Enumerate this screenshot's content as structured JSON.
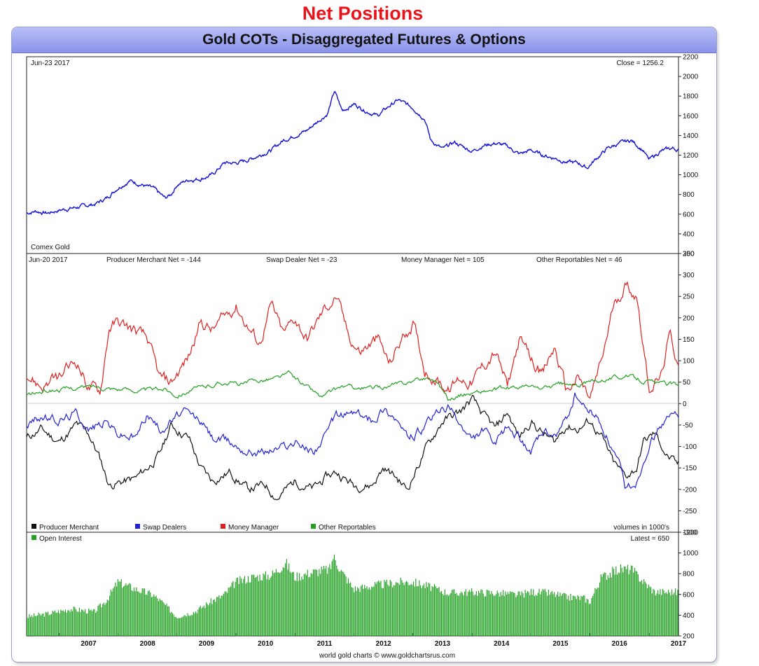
{
  "heading": "Net Positions",
  "title": "Gold COTs - Disaggregated Futures & Options",
  "footer": "world gold charts © www.goldchartsrus.com",
  "colors": {
    "gold_price": "#1010d8",
    "producer_merchant": "#111111",
    "swap_dealers": "#2222d6",
    "money_manager": "#e02020",
    "other_reportables": "#22a022",
    "open_interest": "#22a022",
    "title_bar": "#8b93ea"
  },
  "chart_data": [
    {
      "type": "line",
      "panel": "price",
      "date_label": "Jun-23 2017",
      "close_label": "Close = 1256.2",
      "instrument_label": "Comex Gold",
      "ylim": [
        200,
        2200
      ],
      "yticks": [
        200,
        400,
        600,
        800,
        1000,
        1200,
        1400,
        1600,
        1800,
        2000,
        2200
      ],
      "xlim": [
        2006.45,
        2017.5
      ],
      "series": [
        {
          "x": [
            2006.45,
            2006.6,
            2006.8,
            2007.0,
            2007.2,
            2007.4,
            2007.6,
            2007.8,
            2008.0,
            2008.2,
            2008.4,
            2008.6,
            2008.8,
            2008.9,
            2009.0,
            2009.2,
            2009.4,
            2009.6,
            2009.8,
            2010.0,
            2010.2,
            2010.4,
            2010.6,
            2010.8,
            2011.0,
            2011.2,
            2011.4,
            2011.55,
            2011.67,
            2011.8,
            2012.0,
            2012.2,
            2012.4,
            2012.6,
            2012.75,
            2013.0,
            2013.2,
            2013.3,
            2013.5,
            2013.7,
            2014.0,
            2014.2,
            2014.4,
            2014.6,
            2014.8,
            2015.0,
            2015.2,
            2015.4,
            2015.6,
            2015.8,
            2015.95,
            2016.1,
            2016.3,
            2016.5,
            2016.7,
            2016.9,
            2017.0,
            2017.2,
            2017.4,
            2017.47
          ],
          "y": [
            610,
            630,
            610,
            640,
            660,
            680,
            700,
            760,
            870,
            940,
            900,
            860,
            760,
            800,
            900,
            950,
            960,
            1000,
            1120,
            1120,
            1150,
            1200,
            1250,
            1350,
            1400,
            1450,
            1550,
            1620,
            1850,
            1650,
            1720,
            1650,
            1600,
            1700,
            1760,
            1680,
            1570,
            1350,
            1260,
            1330,
            1240,
            1300,
            1320,
            1290,
            1210,
            1250,
            1200,
            1170,
            1130,
            1120,
            1070,
            1160,
            1270,
            1320,
            1350,
            1250,
            1150,
            1240,
            1270,
            1256
          ]
        }
      ]
    },
    {
      "type": "line",
      "panel": "net_positions",
      "date_label": "Jun-20 2017",
      "ylim": [
        -300,
        350
      ],
      "yticks": [
        -300,
        -250,
        -200,
        -150,
        -100,
        -50,
        0,
        50,
        100,
        150,
        200,
        250,
        300,
        350
      ],
      "xlim": [
        2006.45,
        2017.5
      ],
      "legend": [
        "Producer Merchant",
        "Swap Dealers",
        "Money Manager",
        "Other Reportables"
      ],
      "volume_note": "volumes in 1000's",
      "series": [
        {
          "name": "Producer Merchant",
          "label": "Producer Merchant Net = -144",
          "x": [
            2006.45,
            2006.7,
            2007.0,
            2007.3,
            2007.5,
            2007.7,
            2007.85,
            2008.0,
            2008.3,
            2008.5,
            2008.7,
            2008.9,
            2009.2,
            2009.4,
            2009.6,
            2009.9,
            2010.2,
            2010.5,
            2010.7,
            2011.0,
            2011.3,
            2011.55,
            2011.7,
            2012.0,
            2012.3,
            2012.5,
            2012.7,
            2012.9,
            2013.2,
            2013.5,
            2013.8,
            2014.0,
            2014.2,
            2014.4,
            2014.6,
            2014.8,
            2015.0,
            2015.2,
            2015.4,
            2015.6,
            2015.8,
            2016.0,
            2016.2,
            2016.4,
            2016.6,
            2016.8,
            2016.9,
            2017.1,
            2017.3,
            2017.47
          ],
          "y": [
            -80,
            -60,
            -90,
            -50,
            -70,
            -130,
            -190,
            -185,
            -175,
            -150,
            -120,
            -50,
            -80,
            -150,
            -180,
            -160,
            -200,
            -190,
            -220,
            -180,
            -200,
            -170,
            -160,
            -190,
            -190,
            -150,
            -170,
            -200,
            -110,
            -40,
            -20,
            10,
            -30,
            -60,
            -20,
            -80,
            -40,
            -70,
            -90,
            -50,
            -60,
            -40,
            -80,
            -140,
            -170,
            -150,
            -90,
            -70,
            -120,
            -144
          ]
        },
        {
          "name": "Swap Dealers",
          "label": "Swap Dealer Net = -23",
          "x": [
            2006.45,
            2006.7,
            2007.0,
            2007.3,
            2007.5,
            2007.8,
            2008.0,
            2008.3,
            2008.5,
            2008.7,
            2008.9,
            2009.1,
            2009.4,
            2009.6,
            2009.9,
            2010.2,
            2010.5,
            2010.8,
            2011.0,
            2011.3,
            2011.5,
            2011.7,
            2012.0,
            2012.3,
            2012.5,
            2012.7,
            2012.9,
            2013.2,
            2013.4,
            2013.6,
            2013.8,
            2014.0,
            2014.2,
            2014.4,
            2014.6,
            2014.8,
            2015.0,
            2015.2,
            2015.4,
            2015.6,
            2015.75,
            2015.9,
            2016.1,
            2016.3,
            2016.5,
            2016.6,
            2016.8,
            2017.0,
            2017.2,
            2017.47
          ],
          "y": [
            -50,
            -30,
            -40,
            -20,
            -60,
            -40,
            -70,
            -80,
            -20,
            -60,
            -40,
            -20,
            -40,
            -80,
            -90,
            -110,
            -110,
            -100,
            -90,
            -110,
            -80,
            -30,
            -20,
            -40,
            -10,
            -30,
            -80,
            -60,
            -20,
            -10,
            -50,
            -90,
            -60,
            -100,
            -50,
            -80,
            -110,
            -70,
            -80,
            -40,
            20,
            -10,
            -30,
            -80,
            -150,
            -200,
            -180,
            -90,
            -50,
            -23
          ]
        },
        {
          "name": "Money Manager",
          "label": "Money Manager Net = 105",
          "x": [
            2006.45,
            2006.7,
            2007.0,
            2007.3,
            2007.5,
            2007.7,
            2007.85,
            2008.0,
            2008.3,
            2008.5,
            2008.7,
            2008.9,
            2009.2,
            2009.4,
            2009.6,
            2009.8,
            2010.0,
            2010.2,
            2010.4,
            2010.6,
            2010.8,
            2011.0,
            2011.2,
            2011.5,
            2011.7,
            2011.9,
            2012.1,
            2012.4,
            2012.6,
            2012.8,
            2013.0,
            2013.2,
            2013.4,
            2013.6,
            2013.8,
            2014.0,
            2014.2,
            2014.4,
            2014.6,
            2014.8,
            2015.0,
            2015.2,
            2015.4,
            2015.6,
            2015.8,
            2016.0,
            2016.2,
            2016.4,
            2016.6,
            2016.8,
            2017.0,
            2017.2,
            2017.35,
            2017.47
          ],
          "y": [
            70,
            40,
            60,
            100,
            40,
            30,
            180,
            190,
            170,
            150,
            60,
            50,
            110,
            190,
            170,
            200,
            230,
            180,
            140,
            230,
            160,
            200,
            150,
            220,
            250,
            160,
            120,
            150,
            90,
            150,
            190,
            80,
            60,
            30,
            60,
            50,
            90,
            120,
            40,
            150,
            100,
            70,
            130,
            30,
            60,
            10,
            100,
            230,
            280,
            250,
            40,
            60,
            160,
            105
          ]
        },
        {
          "name": "Other Reportables",
          "label": "Other Reportables Net = 46",
          "x": [
            2006.45,
            2006.8,
            2007.2,
            2007.6,
            2008.0,
            2008.4,
            2008.8,
            2009.0,
            2009.2,
            2009.5,
            2009.8,
            2010.1,
            2010.4,
            2010.7,
            2010.9,
            2011.2,
            2011.45,
            2011.8,
            2012.2,
            2012.6,
            2012.9,
            2013.2,
            2013.4,
            2013.6,
            2013.8,
            2014.0,
            2014.3,
            2014.6,
            2014.9,
            2015.2,
            2015.5,
            2015.8,
            2016.0,
            2016.3,
            2016.6,
            2016.9,
            2017.2,
            2017.47
          ],
          "y": [
            20,
            30,
            35,
            40,
            35,
            30,
            35,
            20,
            30,
            40,
            50,
            45,
            55,
            60,
            70,
            40,
            15,
            40,
            35,
            40,
            50,
            60,
            55,
            10,
            20,
            25,
            30,
            35,
            40,
            35,
            45,
            40,
            50,
            60,
            65,
            55,
            45,
            46
          ]
        }
      ]
    },
    {
      "type": "bar",
      "panel": "open_interest",
      "series_label": "Open Interest",
      "latest_label": "Latest = 650",
      "ylim": [
        200,
        1200
      ],
      "yticks": [
        200,
        400,
        600,
        800,
        1000,
        1200
      ],
      "xlim": [
        2006.45,
        2017.5
      ],
      "x_ticks": [
        "2007",
        "2008",
        "2009",
        "2010",
        "2011",
        "2012",
        "2013",
        "2014",
        "2015",
        "2016",
        "2017"
      ],
      "envelope": {
        "x": [
          2006.45,
          2006.8,
          2007.2,
          2007.6,
          2007.8,
          2008.0,
          2008.3,
          2008.6,
          2008.8,
          2009.0,
          2009.3,
          2009.6,
          2009.8,
          2010.0,
          2010.3,
          2010.6,
          2010.85,
          2011.0,
          2011.3,
          2011.6,
          2011.65,
          2011.8,
          2012.0,
          2012.4,
          2012.8,
          2013.0,
          2013.3,
          2013.6,
          2014.0,
          2014.4,
          2014.8,
          2015.0,
          2015.3,
          2015.6,
          2015.9,
          2016.0,
          2016.2,
          2016.5,
          2016.7,
          2016.9,
          2017.1,
          2017.47
        ],
        "y": [
          400,
          430,
          480,
          450,
          560,
          750,
          680,
          620,
          520,
          400,
          450,
          560,
          620,
          750,
          800,
          820,
          940,
          800,
          850,
          880,
          1010,
          850,
          680,
          720,
          750,
          750,
          700,
          640,
          650,
          640,
          620,
          650,
          640,
          600,
          590,
          550,
          800,
          880,
          880,
          760,
          650,
          650
        ]
      }
    }
  ]
}
